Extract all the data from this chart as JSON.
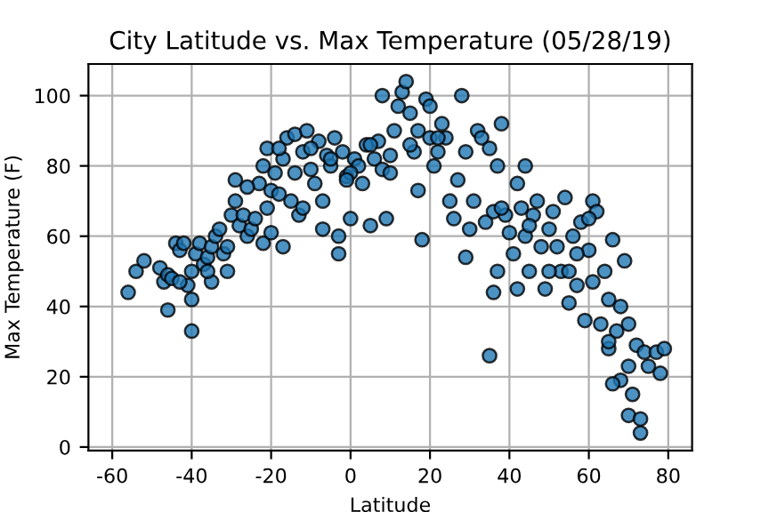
{
  "chart_data": {
    "type": "scatter",
    "title": "City Latitude vs. Max Temperature (05/28/19)",
    "xlabel": "Latitude",
    "ylabel": "Max Temperature (F)",
    "xlim": [
      -66,
      86
    ],
    "ylim": [
      -1,
      109
    ],
    "xticks": [
      -60,
      -40,
      -20,
      0,
      20,
      40,
      60,
      80
    ],
    "yticks": [
      0,
      20,
      40,
      60,
      80,
      100
    ],
    "grid": true,
    "marker": "circle",
    "series": [
      {
        "color": "#1f77b4",
        "x": [
          -56,
          -54,
          -52,
          -48,
          -47,
          -46,
          -46,
          -45,
          -44,
          -43,
          -42,
          -41,
          -40,
          -40,
          -40,
          -39,
          -38,
          -37,
          -36,
          -35,
          -35,
          -34,
          -33,
          -32,
          -31,
          -31,
          -30,
          -29,
          -29,
          -28,
          -27,
          -26,
          -25,
          -24,
          -23,
          -22,
          -22,
          -21,
          -21,
          -20,
          -20,
          -19,
          -18,
          -17,
          -17,
          -16,
          -15,
          -14,
          -13,
          -12,
          -11,
          -10,
          -9,
          -8,
          -7,
          -7,
          -6,
          -5,
          -4,
          -3,
          -3,
          -2,
          -1,
          0,
          1,
          2,
          3,
          4,
          5,
          6,
          7,
          8,
          8,
          9,
          10,
          11,
          12,
          13,
          14,
          15,
          16,
          17,
          17,
          18,
          19,
          20,
          21,
          22,
          23,
          24,
          25,
          26,
          27,
          28,
          29,
          29,
          30,
          31,
          32,
          33,
          34,
          35,
          35,
          36,
          37,
          37,
          38,
          39,
          40,
          41,
          42,
          43,
          44,
          44,
          45,
          46,
          47,
          48,
          49,
          50,
          51,
          52,
          53,
          54,
          55,
          56,
          57,
          58,
          59,
          60,
          61,
          61,
          62,
          63,
          64,
          65,
          65,
          66,
          67,
          68,
          68,
          69,
          70,
          70,
          71,
          72,
          73,
          73,
          74,
          75,
          77,
          78,
          79,
          60,
          65,
          55,
          45,
          38,
          50,
          42,
          36,
          57,
          70,
          66,
          -18,
          -10,
          -5,
          0,
          5,
          10,
          15,
          20,
          22,
          -1,
          -12,
          -14,
          -26,
          -36,
          -43
        ],
        "values": [
          44,
          50,
          53,
          51,
          47,
          49,
          39,
          48,
          58,
          56,
          58,
          46,
          42,
          33,
          50,
          55,
          58,
          52,
          54,
          47,
          57,
          60,
          62,
          55,
          50,
          57,
          66,
          70,
          76,
          63,
          66,
          60,
          62,
          65,
          75,
          80,
          58,
          68,
          85,
          73,
          61,
          78,
          72,
          82,
          57,
          88,
          70,
          89,
          66,
          84,
          90,
          79,
          75,
          87,
          70,
          62,
          83,
          80,
          88,
          60,
          55,
          84,
          77,
          65,
          82,
          80,
          75,
          86,
          63,
          82,
          87,
          100,
          79,
          65,
          83,
          90,
          97,
          101,
          104,
          95,
          84,
          90,
          73,
          59,
          99,
          97,
          80,
          84,
          92,
          88,
          70,
          65,
          76,
          100,
          54,
          84,
          62,
          70,
          90,
          88,
          64,
          26,
          85,
          67,
          80,
          50,
          92,
          66,
          61,
          55,
          75,
          68,
          80,
          60,
          50,
          66,
          70,
          57,
          45,
          62,
          67,
          57,
          50,
          71,
          41,
          60,
          46,
          64,
          36,
          56,
          70,
          47,
          67,
          35,
          50,
          42,
          28,
          59,
          33,
          40,
          19,
          53,
          35,
          9,
          15,
          29,
          8,
          4,
          27,
          23,
          27,
          21,
          28,
          65,
          30,
          50,
          63,
          68,
          50,
          45,
          44,
          55,
          23,
          18,
          85,
          85,
          82,
          78,
          86,
          78,
          86,
          88,
          88,
          76,
          68,
          78,
          74,
          50,
          47
        ]
      }
    ]
  }
}
